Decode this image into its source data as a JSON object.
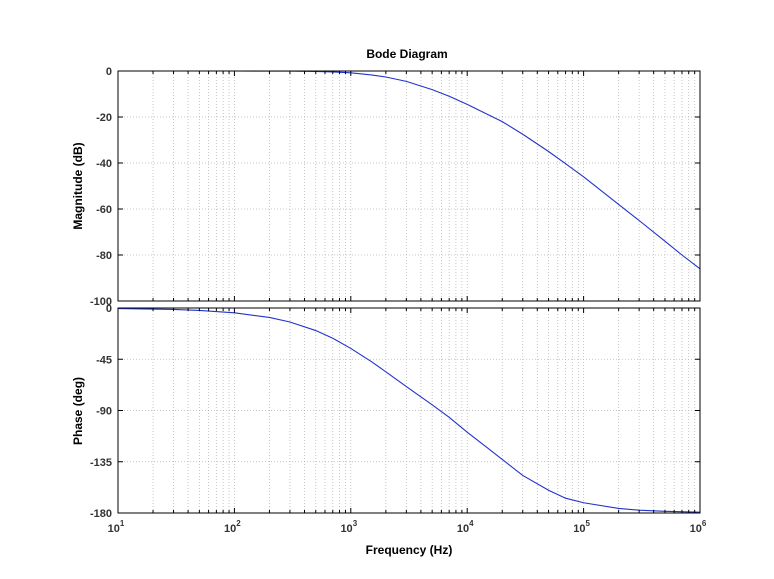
{
  "chart_data": {
    "type": "line",
    "title": "Bode Diagram",
    "xlabel": "Frequency  (Hz)",
    "xscale": "log",
    "xlim": [
      10,
      1000000
    ],
    "grid": true,
    "x_ticks": [
      {
        "base": "10",
        "exp": "1"
      },
      {
        "base": "10",
        "exp": "2"
      },
      {
        "base": "10",
        "exp": "3"
      },
      {
        "base": "10",
        "exp": "4"
      },
      {
        "base": "10",
        "exp": "5"
      },
      {
        "base": "10",
        "exp": "6"
      }
    ],
    "color": "#2233cc",
    "panels": [
      {
        "ylabel": "Magnitude (dB)",
        "ylim": [
          -100,
          0
        ],
        "yticks": [
          0,
          -20,
          -40,
          -60,
          -80,
          -100
        ],
        "series": [
          {
            "x": [
              10,
              100,
              300,
              500,
              700,
              1000,
              1500,
              2000,
              3000,
              5000,
              7000,
              10000,
              20000,
              30000,
              50000,
              70000,
              100000,
              200000,
              300000,
              500000,
              700000,
              1000000
            ],
            "y": [
              0,
              0,
              -0.05,
              -0.2,
              -0.4,
              -0.8,
              -1.7,
              -2.6,
              -4.5,
              -8.1,
              -11.0,
              -14.5,
              -22.0,
              -27.5,
              -35.0,
              -40.3,
              -46.0,
              -58.0,
              -65.0,
              -74.0,
              -80.0,
              -86.0
            ]
          }
        ]
      },
      {
        "ylabel": "Phase (deg)",
        "ylim": [
          -180,
          0
        ],
        "yticks": [
          0,
          -45,
          -90,
          -135,
          -180
        ],
        "series": [
          {
            "x": [
              10,
              30,
              50,
              100,
              200,
              300,
              500,
              700,
              1000,
              1500,
              2000,
              3000,
              5000,
              7000,
              10000,
              15000,
              20000,
              30000,
              50000,
              70000,
              100000,
              200000,
              300000,
              500000,
              1000000
            ],
            "y": [
              -0.5,
              -1.3,
              -2.1,
              -4.2,
              -8.3,
              -12.3,
              -19.8,
              -26.6,
              -35.5,
              -47.0,
              -56.0,
              -69.0,
              -85.0,
              -96.0,
              -109.0,
              -123.0,
              -133.0,
              -147.0,
              -160.0,
              -167.0,
              -171.0,
              -176.0,
              -177.5,
              -178.5,
              -179.3
            ]
          }
        ]
      }
    ]
  }
}
